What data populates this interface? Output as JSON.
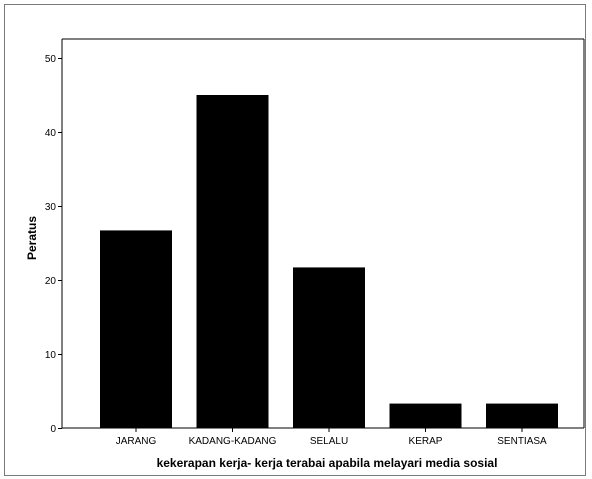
{
  "chart_data": {
    "type": "bar",
    "categories": [
      "JARANG",
      "KADANG-KADANG",
      "SELALU",
      "KERAP",
      "SENTIASA"
    ],
    "values": [
      26.7,
      45.0,
      21.7,
      3.3,
      3.3
    ],
    "xlabel": "kekerapan kerja- kerja terabai apabila melayari media sosial",
    "ylabel": "Peratus",
    "ylim": [
      0,
      50
    ],
    "yticks": [
      0,
      10,
      20,
      30,
      40,
      50
    ],
    "bar_color": "#000000",
    "grid": false
  }
}
